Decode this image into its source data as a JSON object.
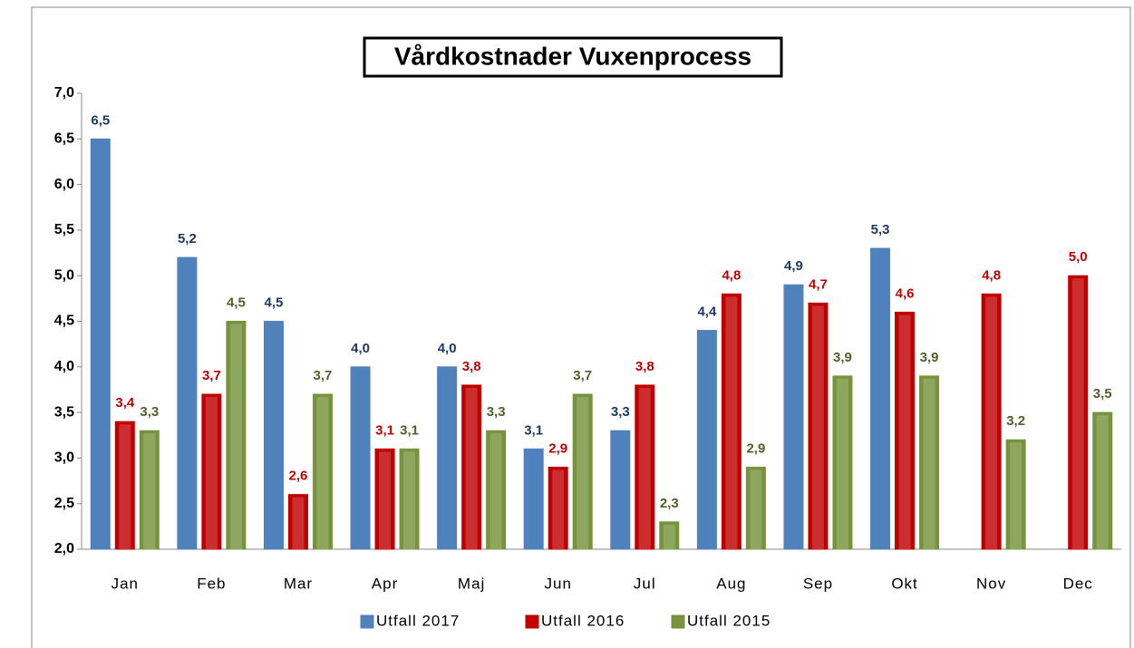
{
  "chart_data": {
    "type": "bar",
    "title": "Vårdkostnader Vuxenprocess",
    "categories": [
      "Jan",
      "Feb",
      "Mar",
      "Apr",
      "Maj",
      "Jun",
      "Jul",
      "Aug",
      "Sep",
      "Okt",
      "Nov",
      "Dec"
    ],
    "series": [
      {
        "name": "Utfall 2017",
        "color": "#4f81bd",
        "label_color": "#1f3864",
        "values": [
          6.5,
          5.2,
          4.5,
          4.0,
          4.0,
          3.1,
          3.3,
          4.4,
          4.9,
          5.3,
          null,
          null
        ],
        "value_labels": [
          "6,5",
          "5,2",
          "4,5",
          "4,0",
          "4,0",
          "3,1",
          "3,3",
          "4,4",
          "4,9",
          "5,3",
          null,
          null
        ]
      },
      {
        "name": "Utfall 2016",
        "color": "#c00000",
        "label_color": "#c00000",
        "values": [
          3.4,
          3.7,
          2.6,
          3.1,
          3.8,
          2.9,
          3.8,
          4.8,
          4.7,
          4.6,
          4.8,
          5.0
        ],
        "value_labels": [
          "3,4",
          "3,7",
          "2,6",
          "3,1",
          "3,8",
          "2,9",
          "3,8",
          "4,8",
          "4,7",
          "4,6",
          "4,8",
          "5,0"
        ]
      },
      {
        "name": "Utfall 2015",
        "color": "#77933c",
        "label_color": "#4f6228",
        "values": [
          3.3,
          4.5,
          3.7,
          3.1,
          3.3,
          3.7,
          2.3,
          2.9,
          3.9,
          3.9,
          3.2,
          3.5
        ],
        "value_labels": [
          "3,3",
          "4,5",
          "3,7",
          "3,1",
          "3,3",
          "3,7",
          "2,3",
          "2,9",
          "3,9",
          "3,9",
          "3,2",
          "3,5"
        ]
      }
    ],
    "ylim": [
      2.0,
      7.0
    ],
    "yticks": [
      {
        "value": 2.0,
        "label": "2,0"
      },
      {
        "value": 2.5,
        "label": "2,5"
      },
      {
        "value": 3.0,
        "label": "3,0"
      },
      {
        "value": 3.5,
        "label": "3,5"
      },
      {
        "value": 4.0,
        "label": "4,0"
      },
      {
        "value": 4.5,
        "label": "4,5"
      },
      {
        "value": 5.0,
        "label": "5,0"
      },
      {
        "value": 5.5,
        "label": "5,5"
      },
      {
        "value": 6.0,
        "label": "6,0"
      },
      {
        "value": 6.5,
        "label": "6,5"
      },
      {
        "value": 7.0,
        "label": "7,0"
      }
    ],
    "grid": false,
    "legend": "bottom"
  }
}
